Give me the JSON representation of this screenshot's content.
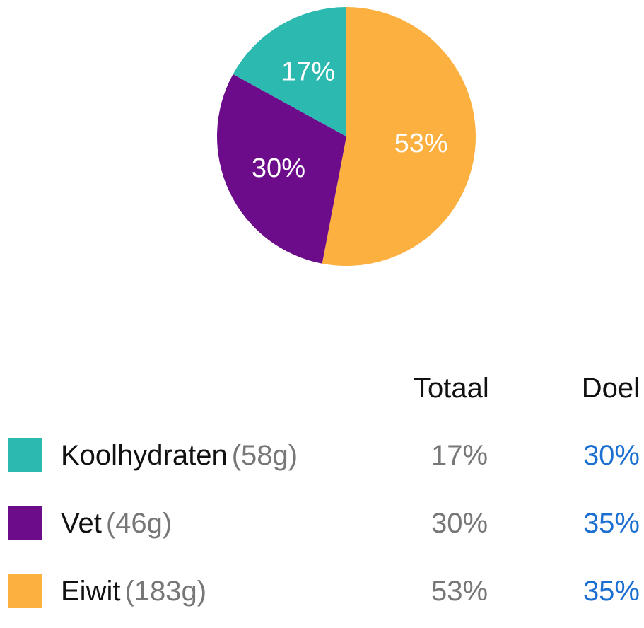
{
  "chart_data": {
    "type": "pie",
    "title": "",
    "slices": [
      {
        "label": "Eiwit",
        "value": 53,
        "display": "53%",
        "color": "#FBB040"
      },
      {
        "label": "Vet",
        "value": 30,
        "display": "30%",
        "color": "#6C0C8A"
      },
      {
        "label": "Koolhydraten",
        "value": 17,
        "display": "17%",
        "color": "#2CB9B0"
      }
    ]
  },
  "table": {
    "headers": {
      "total": "Totaal",
      "goal": "Doel"
    },
    "rows": [
      {
        "name": "Koolhydraten",
        "grams": "(58g)",
        "total": "17%",
        "goal": "30%",
        "color": "#2CB9B0"
      },
      {
        "name": "Vet",
        "grams": "(46g)",
        "total": "30%",
        "goal": "35%",
        "color": "#6C0C8A"
      },
      {
        "name": "Eiwit",
        "grams": "(183g)",
        "total": "53%",
        "goal": "35%",
        "color": "#FBB040"
      }
    ]
  }
}
